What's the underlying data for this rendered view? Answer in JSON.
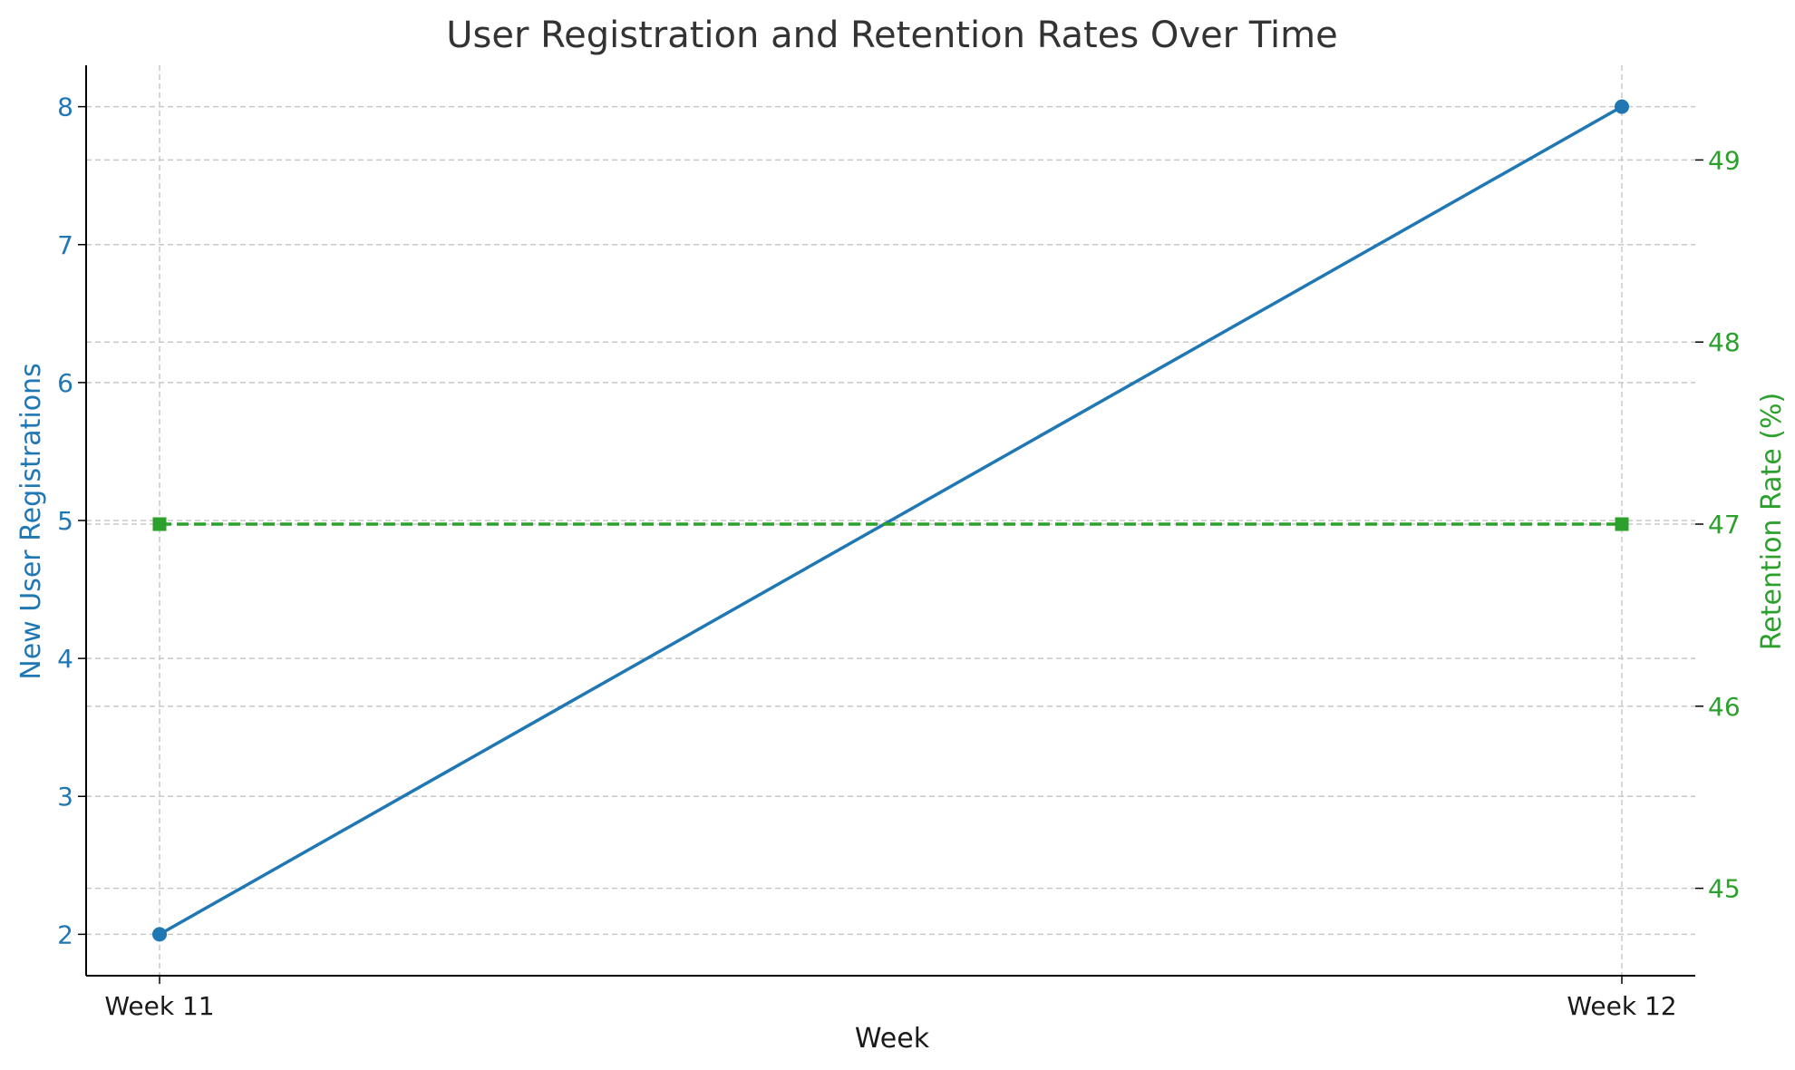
{
  "chart_data": {
    "type": "line",
    "title": "User Registration and Retention Rates Over Time",
    "xlabel": "Week",
    "ylabel_left": "New User Registrations",
    "ylabel_right": "Retention Rate (%)",
    "categories": [
      "Week 11",
      "Week 12"
    ],
    "series": [
      {
        "axis": "left",
        "values": [
          2,
          8
        ],
        "color": "#1f77b4",
        "marker": "circle",
        "line_style": "solid"
      },
      {
        "axis": "right",
        "values": [
          47,
          47
        ],
        "color": "#2ca02c",
        "marker": "square",
        "line_style": "dashed"
      }
    ],
    "ylim_left": [
      1.7,
      8.3
    ],
    "ylim_right": [
      44.52,
      49.52
    ],
    "yticks_left": [
      "2",
      "3",
      "4",
      "5",
      "6",
      "7",
      "8"
    ],
    "yticks_right": [
      "45",
      "46",
      "47",
      "48",
      "49"
    ],
    "grid": true,
    "colors": {
      "left_axis": "#1f77b4",
      "right_axis": "#2ca02c",
      "title": "#333333",
      "text": "#1a1a1a",
      "grid": "#c8c8c8"
    }
  }
}
